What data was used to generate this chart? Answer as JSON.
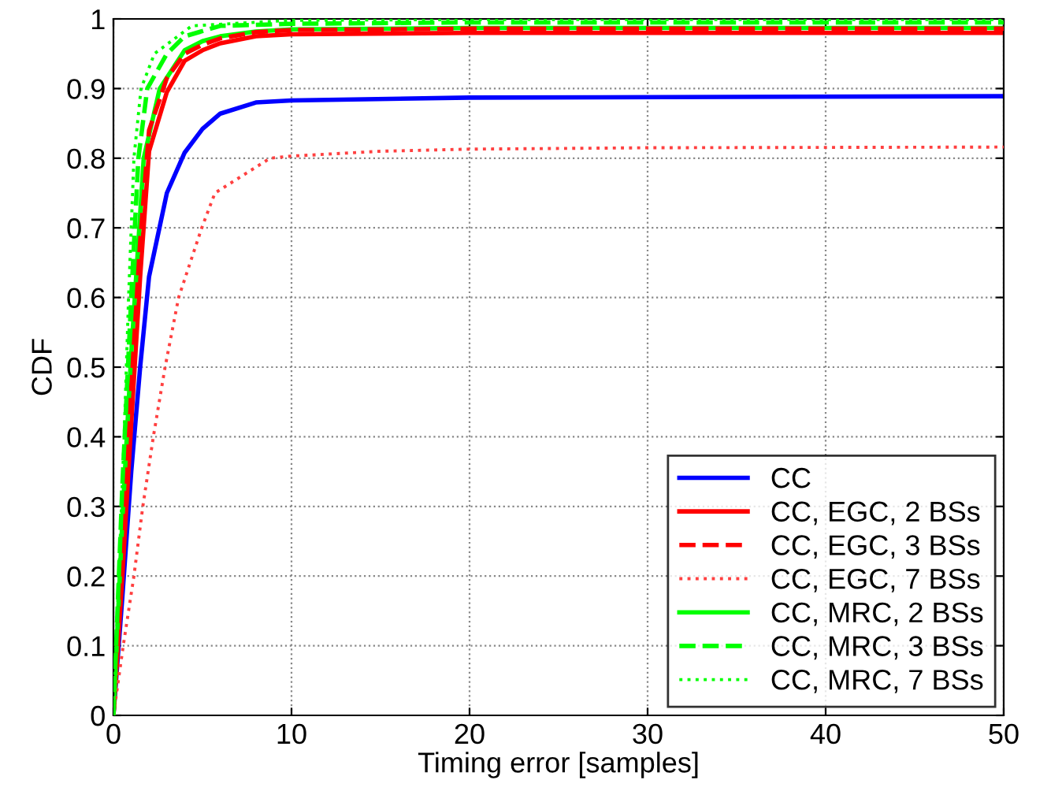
{
  "chart_data": {
    "type": "line",
    "xlabel": "Timing error [samples]",
    "ylabel": "CDF",
    "xlim": [
      0,
      50
    ],
    "ylim": [
      0,
      1
    ],
    "xticks": [
      0,
      10,
      20,
      30,
      40,
      50
    ],
    "yticks": [
      0,
      0.1,
      0.2,
      0.3,
      0.4,
      0.5,
      0.6,
      0.7,
      0.8,
      0.9,
      1
    ],
    "grid": true,
    "legend": "bottom right",
    "marker": "none",
    "series": [
      {
        "name": "CC",
        "color": "#0000ff",
        "line_style": "solid",
        "x": [
          0,
          0.5,
          1,
          1.5,
          2,
          3,
          4,
          5,
          6,
          8,
          10,
          20,
          50
        ],
        "values": [
          0,
          0.17,
          0.35,
          0.5,
          0.63,
          0.75,
          0.808,
          0.842,
          0.864,
          0.88,
          0.883,
          0.887,
          0.889
        ]
      },
      {
        "name": "CC, EGC, 2 BSs",
        "color": "#ff0000",
        "line_style": "solid",
        "x": [
          0,
          0.5,
          1,
          1.5,
          2,
          3,
          4,
          5,
          6,
          8,
          10,
          20,
          50
        ],
        "values": [
          0,
          0.2,
          0.42,
          0.63,
          0.81,
          0.895,
          0.94,
          0.955,
          0.965,
          0.975,
          0.978,
          0.98,
          0.98
        ]
      },
      {
        "name": "CC, EGC, 3 BSs",
        "color": "#ff0000",
        "line_style": "dashed",
        "x": [
          0,
          0.5,
          1,
          1.5,
          2,
          3,
          4,
          5,
          6,
          8,
          10,
          20,
          50
        ],
        "values": [
          0,
          0.23,
          0.47,
          0.68,
          0.84,
          0.915,
          0.95,
          0.963,
          0.972,
          0.981,
          0.984,
          0.986,
          0.986
        ]
      },
      {
        "name": "CC, EGC, 7 BSs",
        "color": "#ff4040",
        "line_style": "dotted",
        "x": [
          0,
          0.55,
          1.15,
          1.65,
          2.24,
          2.9,
          3.66,
          4.96,
          5.7,
          8.8,
          10,
          15,
          20,
          30,
          50
        ],
        "values": [
          0,
          0.1,
          0.2,
          0.3,
          0.4,
          0.5,
          0.6,
          0.7,
          0.75,
          0.8,
          0.803,
          0.81,
          0.813,
          0.815,
          0.816
        ]
      },
      {
        "name": "CC, MRC, 2 BSs",
        "color": "#00ff00",
        "line_style": "solid",
        "x": [
          0,
          0.5,
          1,
          1.7,
          2.6,
          4,
          5,
          6,
          8,
          10,
          20,
          50
        ],
        "values": [
          0,
          0.28,
          0.52,
          0.8,
          0.9,
          0.955,
          0.968,
          0.975,
          0.982,
          0.985,
          0.987,
          0.987
        ]
      },
      {
        "name": "CC, MRC, 3 BSs",
        "color": "#00ff00",
        "line_style": "dashed",
        "x": [
          0,
          0.5,
          1,
          1.4,
          1.9,
          3,
          4,
          6,
          10,
          20,
          50
        ],
        "values": [
          0,
          0.33,
          0.6,
          0.8,
          0.9,
          0.95,
          0.975,
          0.99,
          0.993,
          0.995,
          0.995
        ]
      },
      {
        "name": "CC, MRC, 7 BSs",
        "color": "#00ff00",
        "line_style": "dotted",
        "x": [
          0,
          0.3,
          0.6,
          0.85,
          1.15,
          1.55,
          2.3,
          4.4,
          10,
          20,
          50
        ],
        "values": [
          0,
          0.2,
          0.4,
          0.6,
          0.8,
          0.9,
          0.95,
          0.99,
          0.998,
          0.999,
          0.999
        ]
      }
    ]
  }
}
